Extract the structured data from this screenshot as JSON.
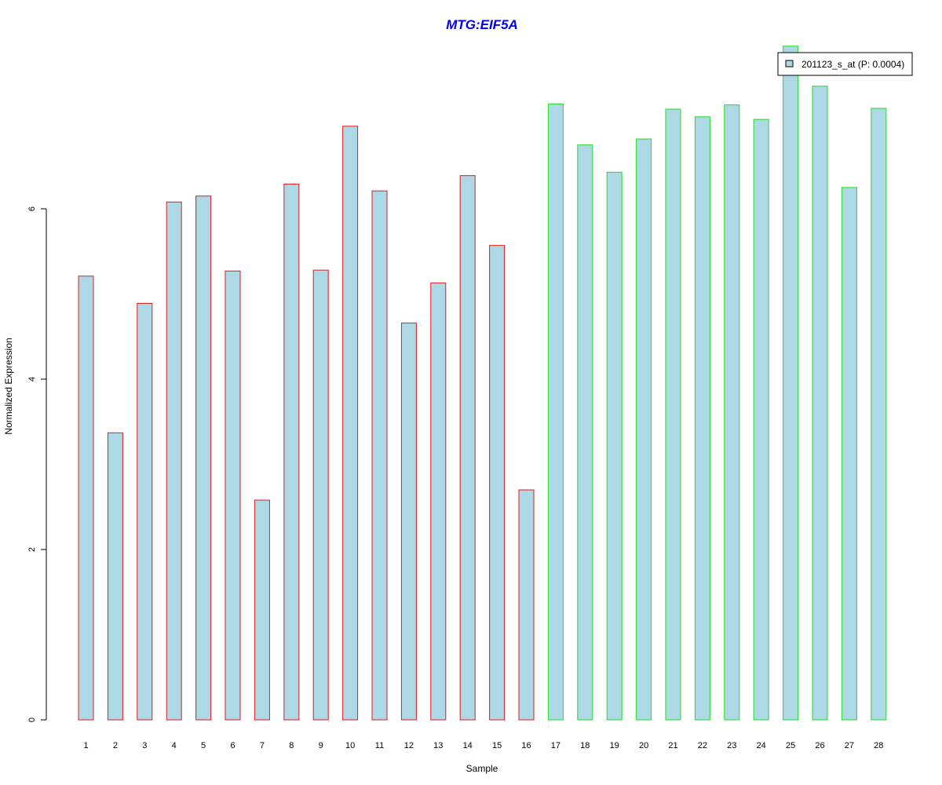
{
  "chart_data": {
    "type": "bar",
    "title": "MTG:EIF5A",
    "xlabel": "Sample",
    "ylabel": "Normalized Expression",
    "ylim": [
      0,
      7.91
    ],
    "yticks": [
      0,
      2,
      4,
      6
    ],
    "grid": false,
    "legend": {
      "placement": "top-right",
      "entries": [
        "201123_s_at (P: 0.0004)"
      ]
    },
    "categories": [
      "1",
      "2",
      "3",
      "4",
      "5",
      "6",
      "7",
      "8",
      "9",
      "10",
      "11",
      "12",
      "13",
      "14",
      "15",
      "16",
      "17",
      "18",
      "19",
      "20",
      "21",
      "22",
      "23",
      "24",
      "25",
      "26",
      "27",
      "28"
    ],
    "series": [
      {
        "name": "201123_s_at (P: 0.0004)",
        "values": [
          5.21,
          3.37,
          4.89,
          6.08,
          6.15,
          5.27,
          2.58,
          6.29,
          5.28,
          6.97,
          6.21,
          4.66,
          5.13,
          6.39,
          5.57,
          2.7,
          7.23,
          6.75,
          6.43,
          6.82,
          7.17,
          7.08,
          7.22,
          7.05,
          7.91,
          7.44,
          6.25,
          7.18
        ],
        "group": [
          "a",
          "a",
          "a",
          "a",
          "a",
          "a",
          "a",
          "a",
          "a",
          "a",
          "a",
          "a",
          "a",
          "a",
          "a",
          "a",
          "b",
          "b",
          "b",
          "b",
          "b",
          "b",
          "b",
          "b",
          "b",
          "b",
          "b",
          "b"
        ]
      }
    ],
    "colors": {
      "fill": "#add8e6",
      "group_a_border": "#e31a1c",
      "group_b_border": "#22dd22",
      "title": "#0000ee"
    }
  }
}
